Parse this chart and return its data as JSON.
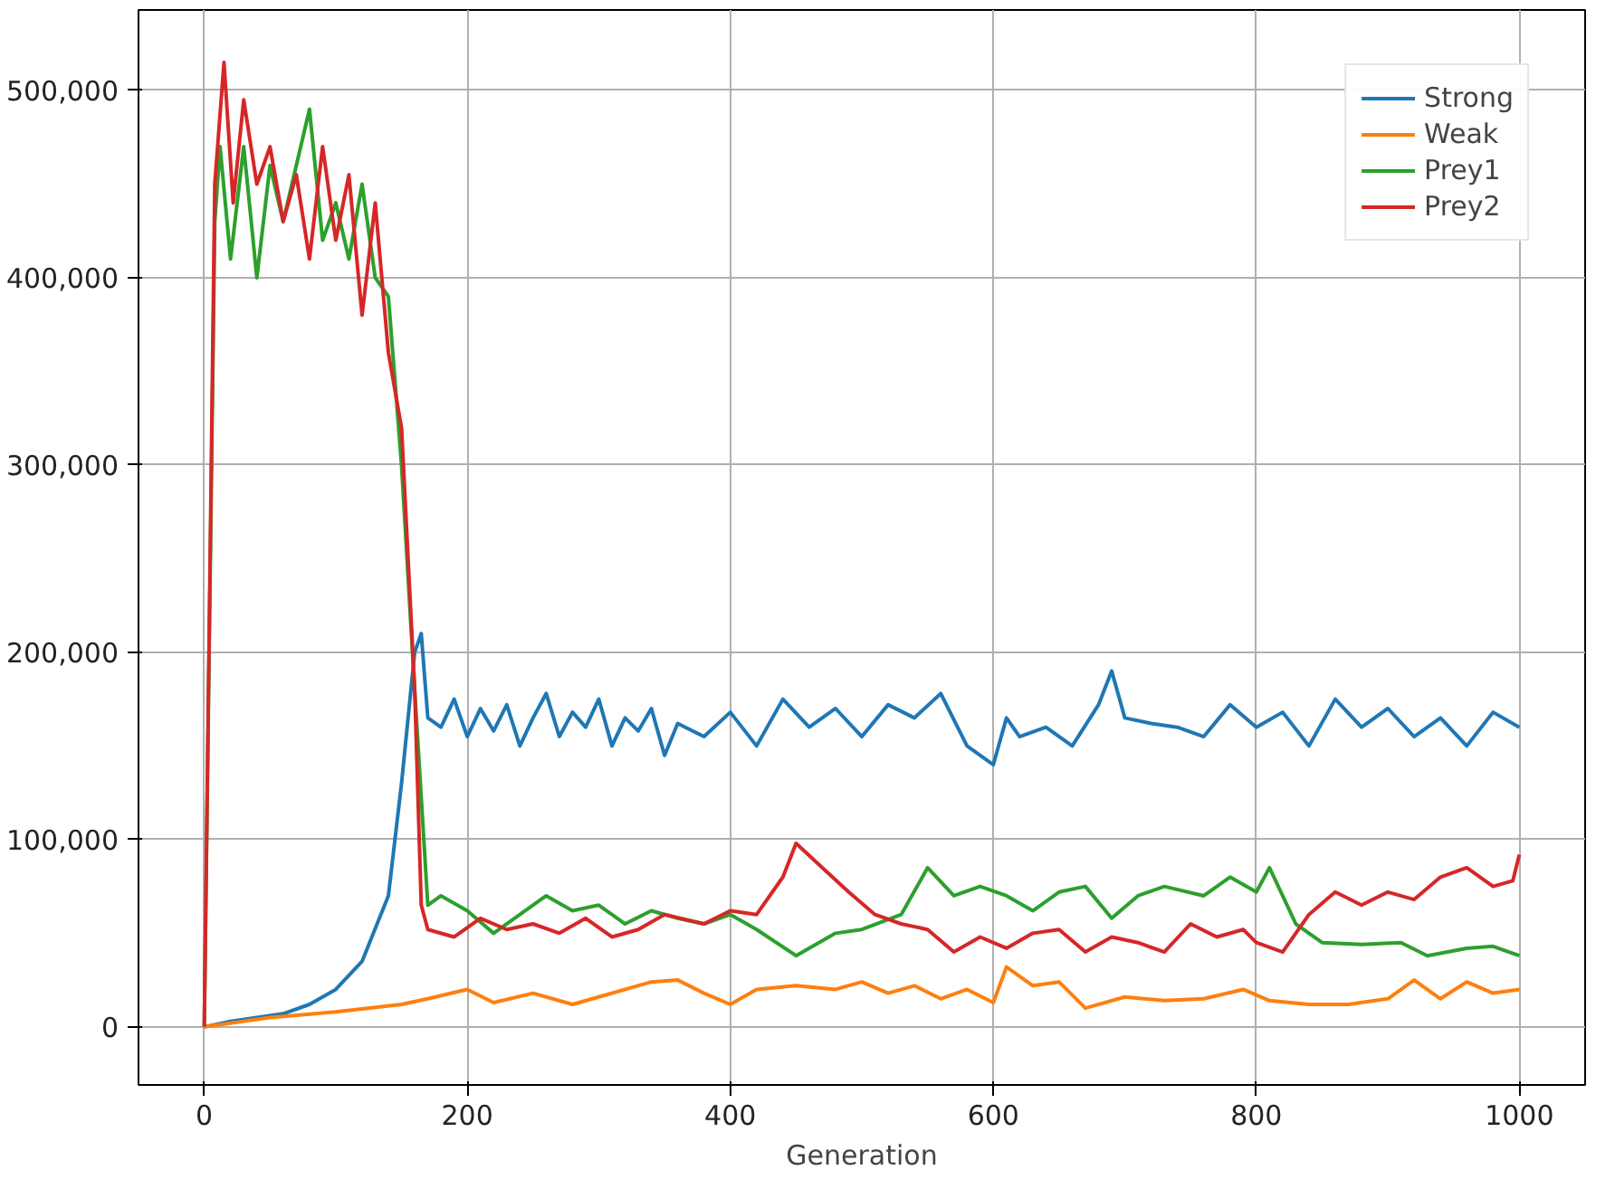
{
  "chart_data": {
    "type": "line",
    "xlabel": "Generation",
    "xlim": [
      -50,
      1050
    ],
    "ylim": [
      -31000,
      543000
    ],
    "xticks": [
      0,
      200,
      400,
      600,
      800,
      1000
    ],
    "yticks": [
      0,
      {
        "value": 100000,
        "label": "100,000"
      },
      {
        "value": 200000,
        "label": "200,000"
      },
      {
        "value": 300000,
        "label": "300,000"
      },
      {
        "value": 400000,
        "label": "400,000"
      },
      {
        "value": 500000,
        "label": "500,000"
      }
    ],
    "grid": true,
    "legend": "top right",
    "line_style": "solid",
    "series": [
      {
        "name": "Strong",
        "color": "#1f77b4",
        "x": [
          0,
          20,
          40,
          60,
          80,
          100,
          120,
          140,
          150,
          160,
          165,
          170,
          180,
          190,
          200,
          210,
          220,
          230,
          240,
          250,
          260,
          270,
          280,
          290,
          300,
          310,
          320,
          330,
          340,
          350,
          360,
          380,
          400,
          420,
          440,
          460,
          480,
          500,
          520,
          540,
          560,
          580,
          600,
          610,
          620,
          640,
          660,
          680,
          690,
          700,
          720,
          740,
          760,
          780,
          800,
          820,
          840,
          860,
          880,
          900,
          920,
          940,
          960,
          980,
          1000
        ],
        "values": [
          0,
          3000,
          5000,
          7000,
          12000,
          20000,
          35000,
          70000,
          130000,
          200000,
          210000,
          165000,
          160000,
          175000,
          155000,
          170000,
          158000,
          172000,
          150000,
          165000,
          178000,
          155000,
          168000,
          160000,
          175000,
          150000,
          165000,
          158000,
          170000,
          145000,
          162000,
          155000,
          168000,
          150000,
          175000,
          160000,
          170000,
          155000,
          172000,
          165000,
          178000,
          150000,
          140000,
          165000,
          155000,
          160000,
          150000,
          172000,
          190000,
          165000,
          162000,
          160000,
          155000,
          172000,
          160000,
          168000,
          150000,
          175000,
          160000,
          170000,
          155000,
          165000,
          150000,
          168000,
          160000
        ]
      },
      {
        "name": "Weak",
        "color": "#ff7f0e",
        "x": [
          0,
          50,
          100,
          150,
          170,
          200,
          220,
          250,
          280,
          300,
          340,
          360,
          380,
          400,
          420,
          450,
          480,
          500,
          520,
          540,
          560,
          580,
          600,
          610,
          630,
          650,
          670,
          700,
          730,
          760,
          790,
          810,
          840,
          870,
          900,
          920,
          940,
          960,
          980,
          1000
        ],
        "values": [
          0,
          5000,
          8000,
          12000,
          15000,
          20000,
          13000,
          18000,
          12000,
          16000,
          24000,
          25000,
          18000,
          12000,
          20000,
          22000,
          20000,
          24000,
          18000,
          22000,
          15000,
          20000,
          13000,
          32000,
          22000,
          24000,
          10000,
          16000,
          14000,
          15000,
          20000,
          14000,
          12000,
          12000,
          15000,
          25000,
          15000,
          24000,
          18000,
          20000
        ]
      },
      {
        "name": "Prey1",
        "color": "#2ca02c",
        "x": [
          0,
          8,
          12,
          20,
          30,
          40,
          50,
          60,
          70,
          80,
          90,
          100,
          110,
          120,
          130,
          140,
          150,
          160,
          170,
          180,
          200,
          220,
          240,
          260,
          280,
          300,
          320,
          340,
          360,
          380,
          400,
          420,
          450,
          480,
          500,
          530,
          550,
          570,
          590,
          610,
          630,
          650,
          670,
          690,
          710,
          730,
          760,
          780,
          800,
          810,
          830,
          850,
          880,
          910,
          930,
          960,
          980,
          1000
        ],
        "values": [
          0,
          430000,
          470000,
          410000,
          470000,
          400000,
          460000,
          430000,
          460000,
          490000,
          420000,
          440000,
          410000,
          450000,
          400000,
          390000,
          300000,
          180000,
          65000,
          70000,
          62000,
          50000,
          60000,
          70000,
          62000,
          65000,
          55000,
          62000,
          58000,
          55000,
          60000,
          52000,
          38000,
          50000,
          52000,
          60000,
          85000,
          70000,
          75000,
          70000,
          62000,
          72000,
          75000,
          58000,
          70000,
          75000,
          70000,
          80000,
          72000,
          85000,
          55000,
          45000,
          44000,
          45000,
          38000,
          42000,
          43000,
          38000
        ]
      },
      {
        "name": "Prey2",
        "color": "#d62728",
        "x": [
          0,
          8,
          15,
          22,
          30,
          40,
          50,
          60,
          70,
          80,
          90,
          100,
          110,
          120,
          130,
          140,
          150,
          160,
          165,
          170,
          190,
          210,
          230,
          250,
          270,
          290,
          310,
          330,
          350,
          380,
          400,
          420,
          440,
          450,
          470,
          490,
          510,
          530,
          550,
          570,
          590,
          610,
          630,
          650,
          670,
          690,
          710,
          730,
          750,
          770,
          790,
          800,
          820,
          840,
          860,
          880,
          900,
          920,
          940,
          960,
          980,
          995,
          1000
        ],
        "values": [
          0,
          450000,
          515000,
          440000,
          495000,
          450000,
          470000,
          430000,
          455000,
          410000,
          470000,
          420000,
          455000,
          380000,
          440000,
          360000,
          320000,
          180000,
          65000,
          52000,
          48000,
          58000,
          52000,
          55000,
          50000,
          58000,
          48000,
          52000,
          60000,
          55000,
          62000,
          60000,
          80000,
          98000,
          85000,
          72000,
          60000,
          55000,
          52000,
          40000,
          48000,
          42000,
          50000,
          52000,
          40000,
          48000,
          45000,
          40000,
          55000,
          48000,
          52000,
          45000,
          40000,
          60000,
          72000,
          65000,
          72000,
          68000,
          80000,
          85000,
          75000,
          78000,
          92000
        ]
      }
    ]
  }
}
